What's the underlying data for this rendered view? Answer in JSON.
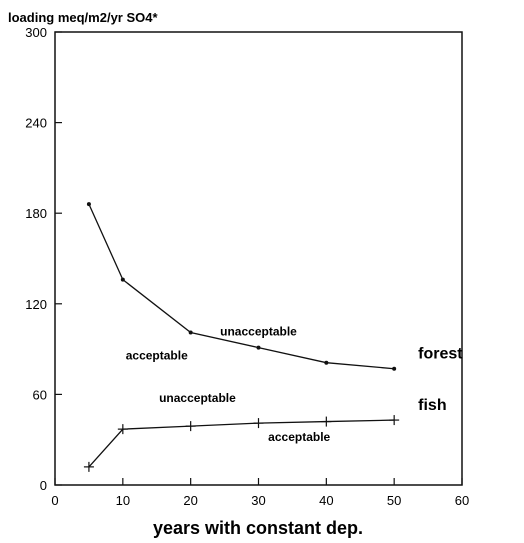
{
  "chart_data": {
    "type": "line",
    "title": "loading meq/m2/yr SO4*",
    "xlabel": "years with constant dep.",
    "ylabel": "",
    "xlim": [
      0,
      60
    ],
    "ylim": [
      0,
      300
    ],
    "x_ticks": [
      0,
      10,
      20,
      30,
      40,
      50,
      60
    ],
    "y_ticks": [
      0,
      60,
      120,
      180,
      240,
      300
    ],
    "grid": false,
    "series": [
      {
        "name": "forest",
        "marker": "dot",
        "x": [
          5,
          10,
          20,
          30,
          40,
          50
        ],
        "values": [
          186,
          136,
          101,
          91,
          81,
          77
        ]
      },
      {
        "name": "fish",
        "marker": "plus",
        "x": [
          5,
          10,
          20,
          30,
          40,
          50
        ],
        "values": [
          12,
          37,
          39,
          41,
          42,
          43
        ]
      }
    ],
    "annotations": [
      {
        "text": "unacceptable",
        "x": 30,
        "y": 99
      },
      {
        "text": "acceptable",
        "x": 15,
        "y": 83
      },
      {
        "text": "unacceptable",
        "x": 21,
        "y": 55
      },
      {
        "text": "acceptable",
        "x": 36,
        "y": 29
      }
    ]
  }
}
